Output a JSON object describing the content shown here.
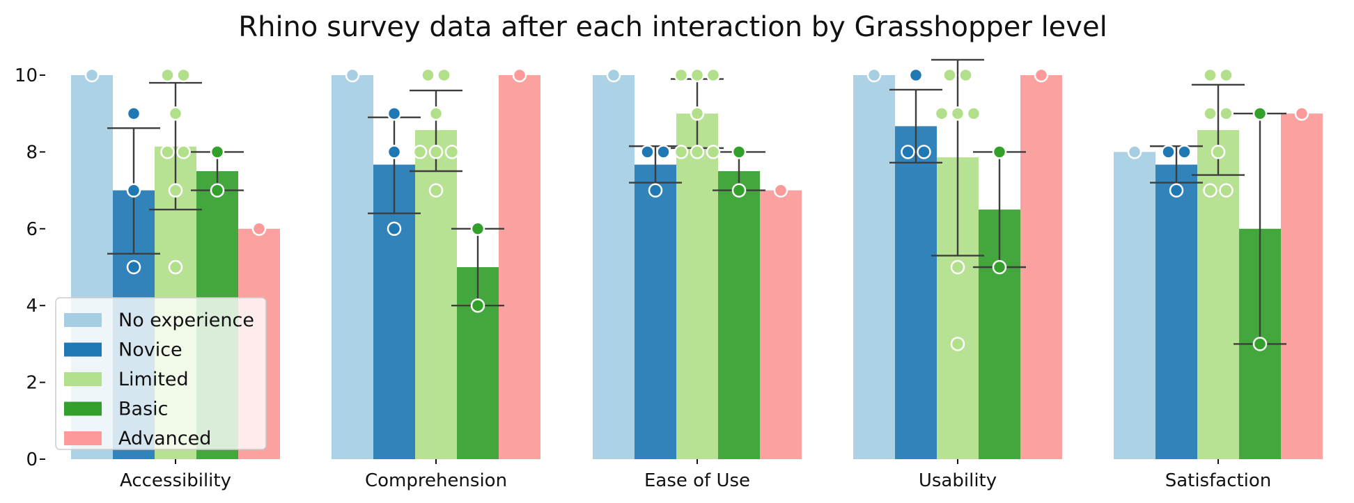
{
  "chart_data": {
    "type": "bar",
    "title": "Rhino survey data after each interaction by Grasshopper level",
    "xlabel": "",
    "ylabel": "",
    "ylim": [
      0,
      10
    ],
    "yticks": [
      0,
      2,
      4,
      6,
      8,
      10
    ],
    "grid": false,
    "legend_position": "bottom-left",
    "categories": [
      "Accessibility",
      "Comprehension",
      "Ease of Use",
      "Usability",
      "Satisfaction"
    ],
    "series": [
      {
        "name": "No experience",
        "color": "#a6cee3",
        "values": [
          10,
          10,
          10,
          10,
          8
        ],
        "errors": [
          null,
          null,
          null,
          null,
          null
        ],
        "points": [
          [
            10
          ],
          [
            10
          ],
          [
            10
          ],
          [
            10
          ],
          [
            8
          ]
        ]
      },
      {
        "name": "Novice",
        "color": "#1f78b4",
        "values": [
          7,
          7.67,
          7.67,
          8.67,
          7.67
        ],
        "errors": [
          [
            5.35,
            8.62
          ],
          [
            6.4,
            8.9
          ],
          [
            7.2,
            8.15
          ],
          [
            7.72,
            9.62
          ],
          [
            7.2,
            8.15
          ]
        ],
        "points": [
          [
            9,
            7,
            5
          ],
          [
            8,
            9,
            6
          ],
          [
            8,
            8,
            7
          ],
          [
            10,
            8,
            8
          ],
          [
            8,
            8,
            7
          ]
        ]
      },
      {
        "name": "Limited",
        "color": "#b2df8a",
        "values": [
          8.14,
          8.57,
          9,
          7.86,
          8.57
        ],
        "errors": [
          [
            6.5,
            9.8
          ],
          [
            7.5,
            9.6
          ],
          [
            8.1,
            9.9
          ],
          [
            5.3,
            10.4
          ],
          [
            7.4,
            9.75
          ]
        ],
        "points": [
          [
            10,
            10,
            9,
            8,
            8,
            7,
            5
          ],
          [
            10,
            10,
            9,
            8,
            8,
            8,
            7
          ],
          [
            10,
            10,
            10,
            9,
            8,
            8,
            8
          ],
          [
            10,
            10,
            9,
            9,
            9,
            5,
            3
          ],
          [
            10,
            10,
            9,
            9,
            8,
            7,
            7
          ]
        ]
      },
      {
        "name": "Basic",
        "color": "#33a02c",
        "values": [
          7.5,
          5,
          7.5,
          6.5,
          6
        ],
        "errors": [
          [
            7,
            8
          ],
          [
            4,
            6
          ],
          [
            7,
            8
          ],
          [
            5,
            8
          ],
          [
            3,
            9
          ]
        ],
        "points": [
          [
            8,
            7
          ],
          [
            6,
            4
          ],
          [
            8,
            7
          ],
          [
            8,
            5
          ],
          [
            9,
            3
          ]
        ]
      },
      {
        "name": "Advanced",
        "color": "#fb9a99",
        "values": [
          6,
          10,
          7,
          10,
          9
        ],
        "errors": [
          null,
          null,
          null,
          null,
          null
        ],
        "points": [
          [
            6
          ],
          [
            10
          ],
          [
            7
          ],
          [
            10
          ],
          [
            9
          ]
        ]
      }
    ]
  }
}
